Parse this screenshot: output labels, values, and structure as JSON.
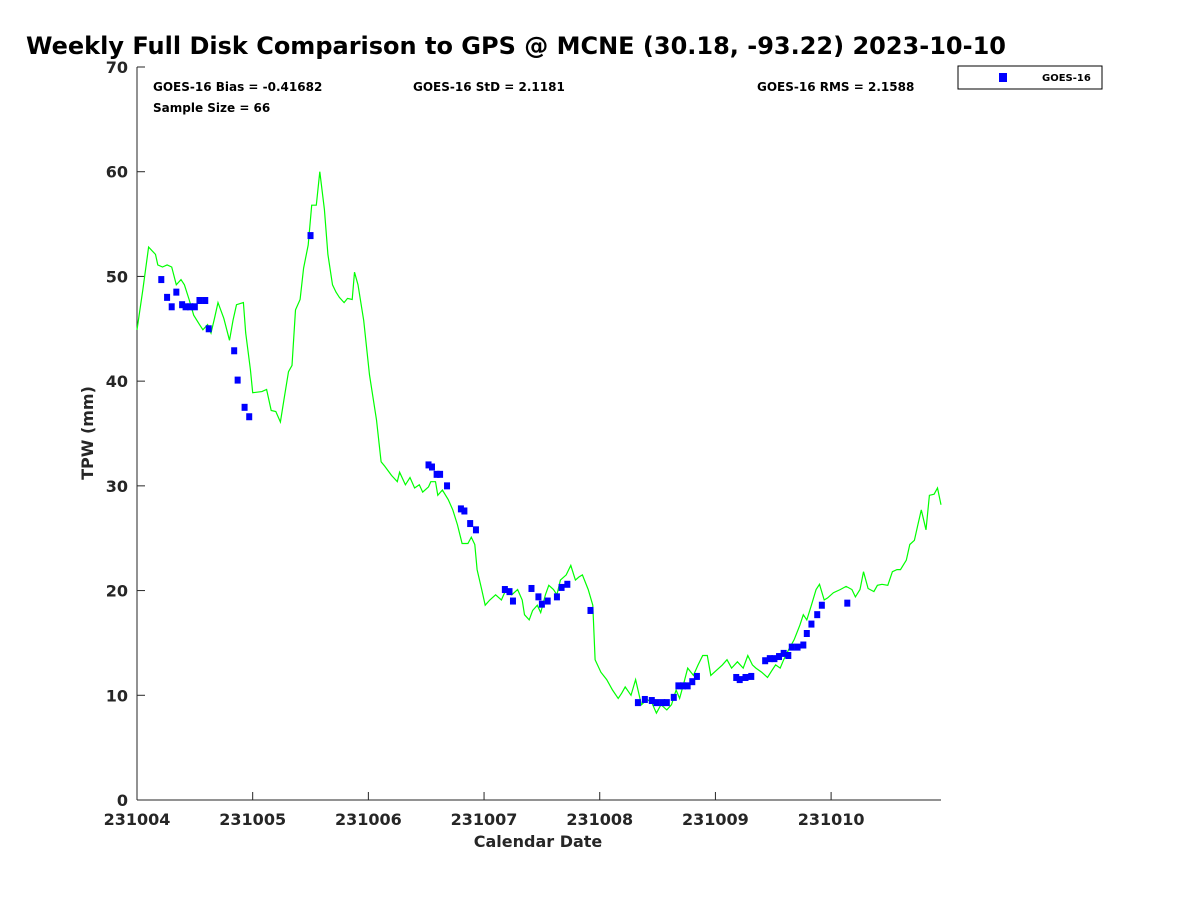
{
  "chart_data": {
    "type": "scatter",
    "title": "Weekly Full Disk Comparison to GPS @ MCNE (30.18, -93.22) 2023-10-10",
    "xlabel": "Calendar Date",
    "ylabel": "TPW (mm)",
    "x_units": "days since 231004",
    "xlim": [
      0,
      6.95
    ],
    "ylim": [
      0,
      70
    ],
    "xticks": [
      0,
      1,
      2,
      3,
      4,
      5,
      6
    ],
    "xtick_labels": [
      "231004",
      "231005",
      "231006",
      "231007",
      "231008",
      "231009",
      "231010"
    ],
    "yticks": [
      0,
      10,
      20,
      30,
      40,
      50,
      60,
      70
    ],
    "ytick_labels": [
      "0",
      "10",
      "20",
      "30",
      "40",
      "50",
      "60",
      "70"
    ],
    "grid": false,
    "legend": {
      "position": "top-right-outside",
      "entries": [
        "GOES-16"
      ]
    },
    "stats": {
      "bias": "GOES-16 Bias = -0.41682",
      "std": "GOES-16 StD = 2.1181",
      "rms": "GOES-16 RMS = 2.1588",
      "sample": "Sample Size = 66"
    },
    "colors": {
      "goes": "#0000ff",
      "gps": "#00ff00"
    },
    "series": [
      {
        "name": "GOES-16",
        "kind": "scatter",
        "x": [
          0.21,
          0.26,
          0.3,
          0.34,
          0.39,
          0.42,
          0.46,
          0.5,
          0.54,
          0.59,
          0.62,
          0.84,
          0.87,
          0.93,
          0.97,
          1.5,
          2.52,
          2.55,
          2.59,
          2.62,
          2.68,
          2.8,
          2.83,
          2.88,
          2.93,
          3.18,
          3.22,
          3.25,
          3.41,
          3.47,
          3.5,
          3.55,
          3.63,
          3.67,
          3.72,
          3.92,
          4.33,
          4.39,
          4.45,
          4.49,
          4.54,
          4.58,
          4.64,
          4.68,
          4.72,
          4.76,
          4.8,
          4.84,
          5.18,
          5.21,
          5.26,
          5.31,
          5.43,
          5.47,
          5.51,
          5.55,
          5.59,
          5.63,
          5.66,
          5.71,
          5.76,
          5.79,
          5.83,
          5.88,
          5.92,
          6.14
        ],
        "y": [
          49.7,
          48.0,
          47.1,
          48.5,
          47.3,
          47.1,
          47.1,
          47.1,
          47.7,
          47.7,
          45.0,
          42.9,
          40.1,
          37.5,
          36.6,
          53.9,
          32.0,
          31.8,
          31.1,
          31.1,
          30.0,
          27.8,
          27.6,
          26.4,
          25.8,
          20.1,
          19.9,
          19.0,
          20.2,
          19.4,
          18.7,
          19.0,
          19.4,
          20.3,
          20.6,
          18.1,
          9.3,
          9.6,
          9.5,
          9.3,
          9.3,
          9.3,
          9.8,
          10.9,
          10.9,
          10.9,
          11.3,
          11.8,
          11.7,
          11.5,
          11.7,
          11.8,
          13.3,
          13.5,
          13.5,
          13.7,
          14.0,
          13.8,
          14.6,
          14.6,
          14.8,
          15.9,
          16.8,
          17.7,
          18.6,
          18.8
        ]
      },
      {
        "name": "GPS",
        "kind": "line",
        "x": [
          0.0,
          0.05,
          0.1,
          0.16,
          0.18,
          0.22,
          0.26,
          0.3,
          0.34,
          0.38,
          0.41,
          0.45,
          0.49,
          0.54,
          0.57,
          0.61,
          0.64,
          0.67,
          0.7,
          0.75,
          0.8,
          0.83,
          0.86,
          0.92,
          0.94,
          0.98,
          1.0,
          1.08,
          1.12,
          1.16,
          1.2,
          1.24,
          1.27,
          1.31,
          1.34,
          1.37,
          1.41,
          1.44,
          1.48,
          1.51,
          1.55,
          1.58,
          1.62,
          1.65,
          1.69,
          1.72,
          1.75,
          1.79,
          1.82,
          1.86,
          1.88,
          1.91,
          1.96,
          2.01,
          2.07,
          2.11,
          2.14,
          2.2,
          2.25,
          2.27,
          2.32,
          2.36,
          2.4,
          2.44,
          2.47,
          2.52,
          2.54,
          2.58,
          2.6,
          2.64,
          2.69,
          2.73,
          2.77,
          2.81,
          2.86,
          2.89,
          2.92,
          2.94,
          2.98,
          3.01,
          3.05,
          3.1,
          3.15,
          3.19,
          3.24,
          3.29,
          3.33,
          3.35,
          3.39,
          3.42,
          3.46,
          3.49,
          3.53,
          3.56,
          3.6,
          3.63,
          3.66,
          3.71,
          3.75,
          3.79,
          3.82,
          3.85,
          3.9,
          3.94,
          3.96,
          4.01,
          4.06,
          4.11,
          4.16,
          4.19,
          4.22,
          4.27,
          4.31,
          4.36,
          4.41,
          4.45,
          4.49,
          4.53,
          4.58,
          4.62,
          4.66,
          4.69,
          4.73,
          4.76,
          4.81,
          4.85,
          4.89,
          4.93,
          4.96,
          5.01,
          5.06,
          5.1,
          5.14,
          5.19,
          5.24,
          5.28,
          5.32,
          5.35,
          5.4,
          5.45,
          5.49,
          5.52,
          5.56,
          5.59,
          5.63,
          5.68,
          5.73,
          5.76,
          5.79,
          5.83,
          5.87,
          5.9,
          5.94,
          5.97,
          6.02,
          6.08,
          6.13,
          6.18,
          6.21,
          6.25,
          6.28,
          6.32,
          6.37,
          6.4,
          6.44,
          6.49,
          6.53,
          6.57,
          6.6,
          6.65,
          6.68,
          6.72,
          6.75,
          6.78,
          6.82,
          6.85,
          6.89,
          6.92,
          6.95
        ],
        "y": [
          44.9,
          48.7,
          52.8,
          52.1,
          51.1,
          50.9,
          51.1,
          50.9,
          49.2,
          49.7,
          49.2,
          47.8,
          46.3,
          45.4,
          44.9,
          45.4,
          44.6,
          46.0,
          47.5,
          46.0,
          43.9,
          45.8,
          47.3,
          47.5,
          44.6,
          41.1,
          38.9,
          39.0,
          39.2,
          37.2,
          37.1,
          36.1,
          38.2,
          40.9,
          41.5,
          46.8,
          47.8,
          50.8,
          53.0,
          56.8,
          56.8,
          60.0,
          56.4,
          52.1,
          49.2,
          48.5,
          48.0,
          47.5,
          47.9,
          47.8,
          50.4,
          49.2,
          45.8,
          40.6,
          36.3,
          32.3,
          31.9,
          31.0,
          30.4,
          31.3,
          30.1,
          30.8,
          29.8,
          30.1,
          29.4,
          29.9,
          30.4,
          30.4,
          29.1,
          29.6,
          28.7,
          27.7,
          26.3,
          24.5,
          24.5,
          25.1,
          24.4,
          22.0,
          20.1,
          18.6,
          19.1,
          19.6,
          19.1,
          20.1,
          19.6,
          20.1,
          19.1,
          17.7,
          17.2,
          18.1,
          18.6,
          17.9,
          19.6,
          20.5,
          20.1,
          19.6,
          21.0,
          21.5,
          22.4,
          21.0,
          21.3,
          21.5,
          20.1,
          18.6,
          13.4,
          12.2,
          11.5,
          10.5,
          9.7,
          10.2,
          10.8,
          10.0,
          11.5,
          9.1,
          9.6,
          9.3,
          8.3,
          9.1,
          8.6,
          9.1,
          10.5,
          9.7,
          11.3,
          12.6,
          11.9,
          12.9,
          13.8,
          13.8,
          11.9,
          12.4,
          12.9,
          13.4,
          12.6,
          13.2,
          12.6,
          13.8,
          12.9,
          12.6,
          12.2,
          11.7,
          12.4,
          12.9,
          12.6,
          13.4,
          14.3,
          15.3,
          16.7,
          17.7,
          17.2,
          18.6,
          20.1,
          20.6,
          19.1,
          19.3,
          19.8,
          20.1,
          20.4,
          20.1,
          19.4,
          20.1,
          21.8,
          20.2,
          19.9,
          20.5,
          20.6,
          20.5,
          21.8,
          22.0,
          22.0,
          22.9,
          24.4,
          24.8,
          26.3,
          27.7,
          25.8,
          29.1,
          29.2,
          29.8,
          28.2
        ]
      }
    ]
  }
}
